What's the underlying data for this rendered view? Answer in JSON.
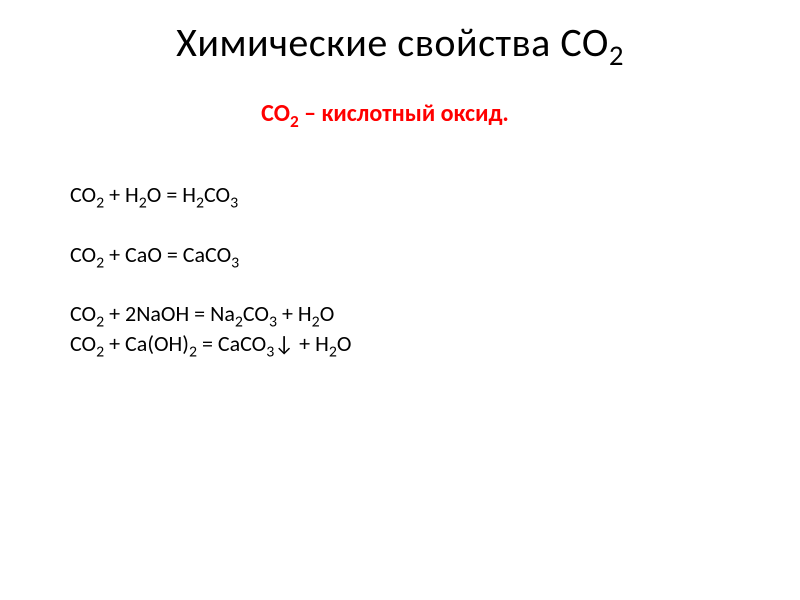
{
  "colors": {
    "background": "#ffffff",
    "text": "#000000",
    "accent_red": "#ff0000"
  },
  "typography": {
    "title_fontsize": 40,
    "title_weight": 300,
    "subtitle_fontsize": 24,
    "subtitle_weight": 700,
    "body_fontsize": 22,
    "font_family": "Calibri"
  },
  "title": {
    "prefix": "Химические свойства CO",
    "sub": "2"
  },
  "subtitle": {
    "formula_main": "CO",
    "formula_sub": "2",
    "text": " – кислотный оксид.",
    "color": "#ff0000"
  },
  "equations": [
    {
      "parts": [
        {
          "t": "CO"
        },
        {
          "t": "2",
          "sub": true
        },
        {
          "t": " + H"
        },
        {
          "t": "2",
          "sub": true
        },
        {
          "t": "O = H"
        },
        {
          "t": "2",
          "sub": true
        },
        {
          "t": "CO"
        },
        {
          "t": "3",
          "sub": true
        }
      ],
      "gap_before": false
    },
    {
      "parts": [
        {
          "t": "CO"
        },
        {
          "t": "2",
          "sub": true
        },
        {
          "t": " + CaO = CaCO"
        },
        {
          "t": "3",
          "sub": true
        }
      ],
      "gap_before": true
    },
    {
      "parts": [
        {
          "t": "CO"
        },
        {
          "t": "2",
          "sub": true
        },
        {
          "t": " + 2NaOH = Na"
        },
        {
          "t": "2",
          "sub": true
        },
        {
          "t": "CO"
        },
        {
          "t": "3",
          "sub": true
        },
        {
          "t": " + H"
        },
        {
          "t": "2",
          "sub": true
        },
        {
          "t": "O"
        }
      ],
      "gap_before": true
    },
    {
      "parts": [
        {
          "t": "CO"
        },
        {
          "t": "2",
          "sub": true
        },
        {
          "t": " + Ca(OH)"
        },
        {
          "t": "2",
          "sub": true
        },
        {
          "t": " = CaCO"
        },
        {
          "t": "3",
          "sub": true
        },
        {
          "t": "↓ + H"
        },
        {
          "t": "2",
          "sub": true
        },
        {
          "t": "O"
        }
      ],
      "gap_before": false
    }
  ]
}
